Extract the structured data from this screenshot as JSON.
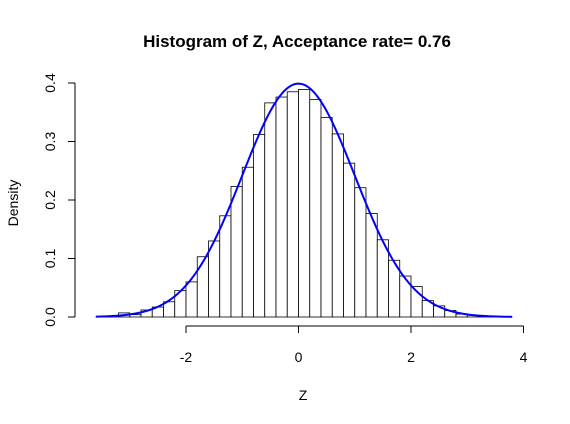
{
  "chart_data": {
    "type": "bar",
    "title": "Histogram of Z, Acceptance rate=  0.76",
    "xlabel": "Z",
    "ylabel": "Density",
    "xlim": [
      -3.7,
      4.1
    ],
    "ylim": [
      0,
      0.4
    ],
    "xticks": [
      -2,
      0,
      2,
      4
    ],
    "yticks": [
      0.0,
      0.1,
      0.2,
      0.3,
      0.4
    ],
    "xtick_labels": [
      "-2",
      "0",
      "2",
      "4"
    ],
    "ytick_labels": [
      "0.0",
      "0.1",
      "0.2",
      "0.3",
      "0.4"
    ],
    "grid": false,
    "bin_width": 0.2,
    "bins": [
      {
        "x0": -3.6,
        "x1": -3.4,
        "density": 0.0004
      },
      {
        "x0": -3.4,
        "x1": -3.2,
        "density": 0.002
      },
      {
        "x0": -3.2,
        "x1": -3.0,
        "density": 0.007
      },
      {
        "x0": -3.0,
        "x1": -2.8,
        "density": 0.004
      },
      {
        "x0": -2.8,
        "x1": -2.6,
        "density": 0.012
      },
      {
        "x0": -2.6,
        "x1": -2.4,
        "density": 0.017
      },
      {
        "x0": -2.4,
        "x1": -2.2,
        "density": 0.026
      },
      {
        "x0": -2.2,
        "x1": -2.0,
        "density": 0.045
      },
      {
        "x0": -2.0,
        "x1": -1.8,
        "density": 0.06
      },
      {
        "x0": -1.8,
        "x1": -1.6,
        "density": 0.103
      },
      {
        "x0": -1.6,
        "x1": -1.4,
        "density": 0.13
      },
      {
        "x0": -1.4,
        "x1": -1.2,
        "density": 0.173
      },
      {
        "x0": -1.2,
        "x1": -1.0,
        "density": 0.223
      },
      {
        "x0": -1.0,
        "x1": -0.8,
        "density": 0.256
      },
      {
        "x0": -0.8,
        "x1": -0.6,
        "density": 0.312
      },
      {
        "x0": -0.6,
        "x1": -0.4,
        "density": 0.366
      },
      {
        "x0": -0.4,
        "x1": -0.2,
        "density": 0.376
      },
      {
        "x0": -0.2,
        "x1": 0.0,
        "density": 0.385
      },
      {
        "x0": 0.0,
        "x1": 0.2,
        "density": 0.389
      },
      {
        "x0": 0.2,
        "x1": 0.4,
        "density": 0.372
      },
      {
        "x0": 0.4,
        "x1": 0.6,
        "density": 0.341
      },
      {
        "x0": 0.6,
        "x1": 0.8,
        "density": 0.313
      },
      {
        "x0": 0.8,
        "x1": 1.0,
        "density": 0.263
      },
      {
        "x0": 1.0,
        "x1": 1.2,
        "density": 0.221
      },
      {
        "x0": 1.2,
        "x1": 1.4,
        "density": 0.177
      },
      {
        "x0": 1.4,
        "x1": 1.6,
        "density": 0.132
      },
      {
        "x0": 1.6,
        "x1": 1.8,
        "density": 0.097
      },
      {
        "x0": 1.8,
        "x1": 2.0,
        "density": 0.07
      },
      {
        "x0": 2.0,
        "x1": 2.2,
        "density": 0.052
      },
      {
        "x0": 2.2,
        "x1": 2.4,
        "density": 0.028
      },
      {
        "x0": 2.4,
        "x1": 2.6,
        "density": 0.019
      },
      {
        "x0": 2.6,
        "x1": 2.8,
        "density": 0.011
      },
      {
        "x0": 2.8,
        "x1": 3.0,
        "density": 0.005
      },
      {
        "x0": 3.0,
        "x1": 3.2,
        "density": 0.003
      },
      {
        "x0": 3.2,
        "x1": 3.4,
        "density": 0.001
      },
      {
        "x0": 3.4,
        "x1": 3.6,
        "density": 0.0005
      }
    ],
    "curve": {
      "type": "line",
      "description": "standard normal density",
      "color": "#0000ff",
      "x_range": [
        -3.6,
        3.8
      ]
    },
    "bar_fill": "#ffffff",
    "bar_stroke": "#000000"
  }
}
